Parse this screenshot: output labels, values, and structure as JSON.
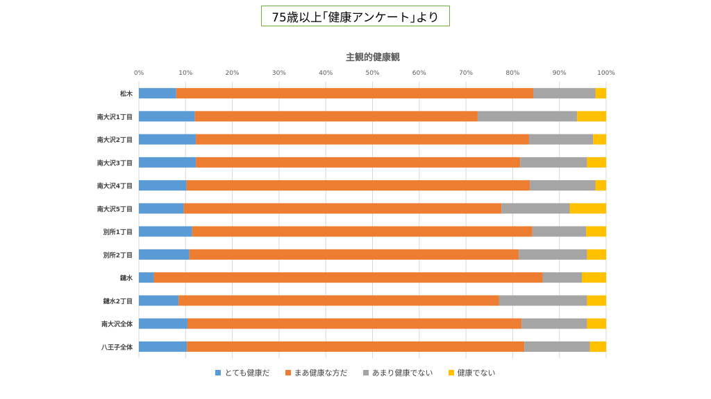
{
  "header": {
    "title": "75歳以上｢健康アンケート｣より"
  },
  "chart_data": {
    "type": "bar",
    "orientation": "horizontal",
    "stacked": "percent",
    "title": "主観的健康観",
    "categories": [
      "松木",
      "南大沢1丁目",
      "南大沢2丁目",
      "南大沢3丁目",
      "南大沢4丁目",
      "南大沢5丁目",
      "別所1丁目",
      "別所2丁目",
      "鑓水",
      "鑓水2丁目",
      "南大沢全体",
      "八王子全体"
    ],
    "x_ticks": [
      "0%",
      "10%",
      "20%",
      "30%",
      "40%",
      "50%",
      "60%",
      "70%",
      "80%",
      "90%",
      "100%"
    ],
    "xlim": [
      0,
      100
    ],
    "grid": true,
    "legend_position": "bottom",
    "series": [
      {
        "name": "とても健康だ",
        "color": "#5b9bd5",
        "values": [
          8.0,
          12.0,
          12.2,
          12.2,
          10.2,
          9.6,
          11.4,
          10.8,
          3.2,
          8.5,
          10.4,
          10.3
        ]
      },
      {
        "name": "まあ健康な方だ",
        "color": "#ed7d31",
        "values": [
          76.4,
          60.5,
          71.3,
          69.4,
          73.5,
          68.0,
          72.8,
          70.5,
          83.2,
          68.6,
          71.5,
          72.2
        ]
      },
      {
        "name": "あまり健康でない",
        "color": "#a5a5a5",
        "values": [
          13.3,
          21.3,
          13.7,
          14.3,
          14.0,
          14.6,
          11.5,
          14.6,
          8.4,
          18.8,
          14.0,
          14.0
        ]
      },
      {
        "name": "健康でない",
        "color": "#ffc000",
        "values": [
          2.3,
          6.2,
          2.8,
          4.1,
          2.3,
          7.8,
          4.3,
          4.1,
          5.2,
          4.1,
          4.1,
          3.5
        ]
      }
    ]
  }
}
